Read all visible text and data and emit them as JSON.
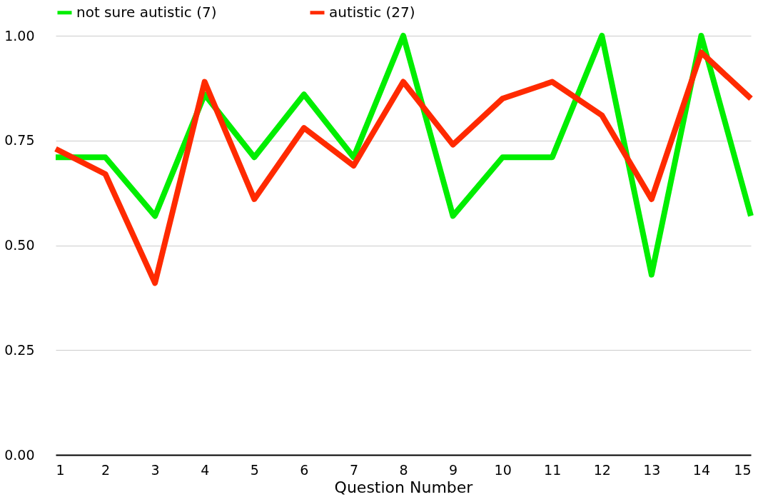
{
  "chart_data": {
    "type": "line",
    "xlabel": "Question Number",
    "x": [
      1,
      2,
      3,
      4,
      5,
      6,
      7,
      8,
      9,
      10,
      11,
      12,
      13,
      14,
      15
    ],
    "series": [
      {
        "name": "not sure autistic (7)",
        "color": "#00ee00",
        "values": [
          0.71,
          0.71,
          0.57,
          0.86,
          0.71,
          0.86,
          0.71,
          1.0,
          0.57,
          0.71,
          0.71,
          1.0,
          0.43,
          1.0,
          0.57
        ]
      },
      {
        "name": "autistic (27)",
        "color": "#ff2a00",
        "values": [
          0.73,
          0.67,
          0.41,
          0.89,
          0.61,
          0.78,
          0.69,
          0.89,
          0.74,
          0.85,
          0.89,
          0.81,
          0.61,
          0.96,
          0.85
        ]
      }
    ],
    "xlim": [
      1,
      15
    ],
    "xticks": [
      1,
      2,
      3,
      4,
      5,
      6,
      7,
      8,
      9,
      10,
      11,
      12,
      13,
      14,
      15
    ],
    "ylim": [
      0,
      1.0
    ],
    "yticks": [
      {
        "value": 0,
        "label": "0.00"
      },
      {
        "value": 0.25,
        "label": "0.25"
      },
      {
        "value": 0.5,
        "label": "0.50"
      },
      {
        "value": 0.75,
        "label": "0.75"
      },
      {
        "value": 1.0,
        "label": "1.00"
      }
    ],
    "grid": "y",
    "legend": "top",
    "marker": "none",
    "line_style": "solid"
  }
}
